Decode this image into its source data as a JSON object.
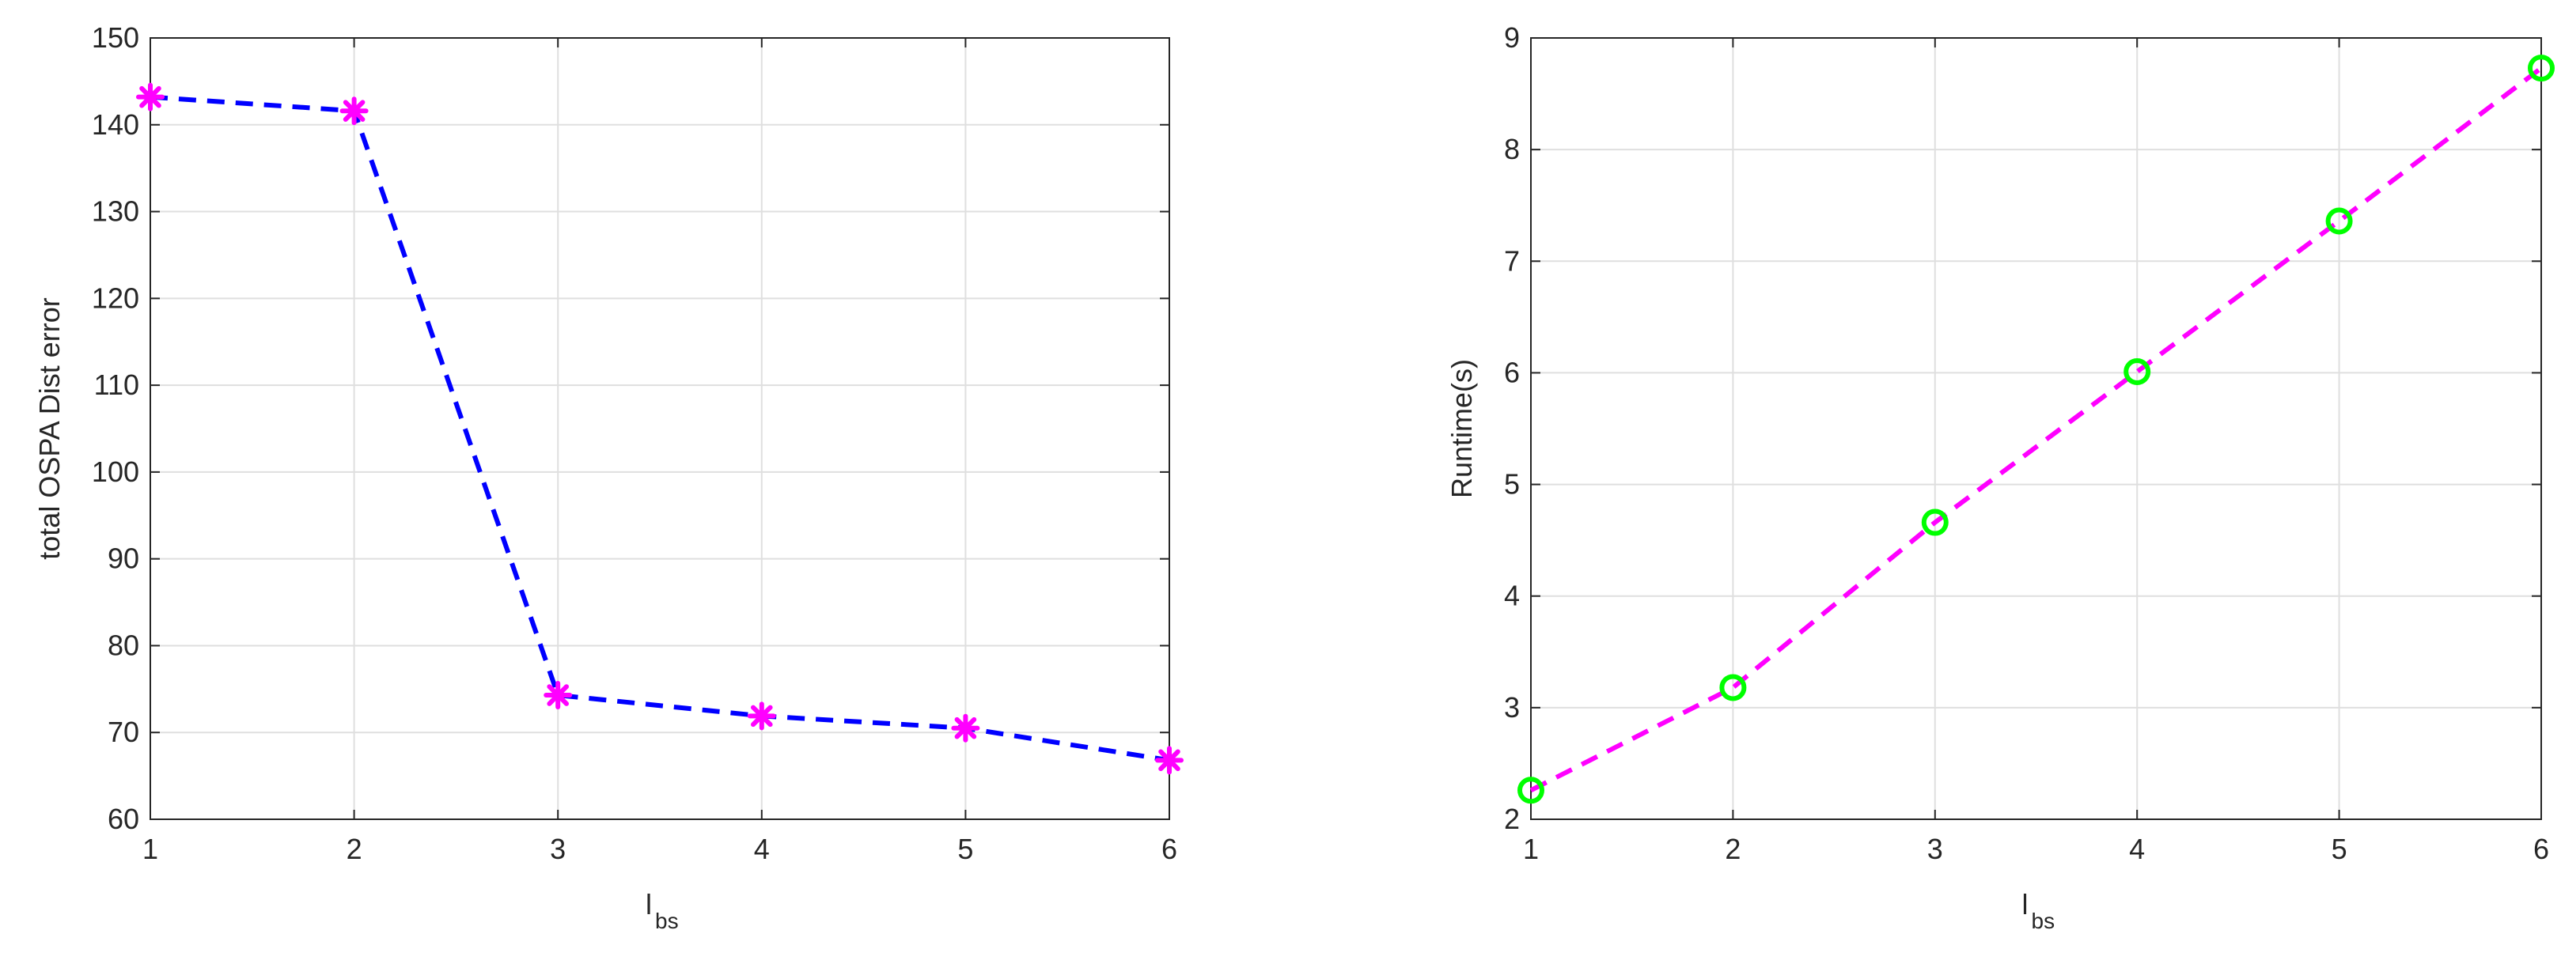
{
  "chart_data": [
    {
      "type": "line",
      "title": "",
      "xlabel": "l",
      "xlabel_subscript": "bs",
      "ylabel": "total OSPA Dist error",
      "xlim": [
        1,
        6
      ],
      "ylim": [
        60,
        150
      ],
      "xticks": [
        1,
        2,
        3,
        4,
        5,
        6
      ],
      "yticks": [
        60,
        70,
        80,
        90,
        100,
        110,
        120,
        130,
        140,
        150
      ],
      "grid": true,
      "line_color": "#0000ff",
      "line_style": "dashed",
      "marker": "asterisk",
      "marker_color": "#ff00ff",
      "series": [
        {
          "x": [
            1,
            2,
            3,
            4,
            5,
            6
          ],
          "values": [
            143.2,
            141.6,
            74.3,
            71.9,
            70.5,
            66.8
          ]
        }
      ]
    },
    {
      "type": "line",
      "title": "",
      "xlabel": "l",
      "xlabel_subscript": "bs",
      "ylabel": "Runtime(s)",
      "xlim": [
        1,
        6
      ],
      "ylim": [
        2,
        9
      ],
      "xticks": [
        1,
        2,
        3,
        4,
        5,
        6
      ],
      "yticks": [
        2,
        3,
        4,
        5,
        6,
        7,
        8,
        9
      ],
      "grid": true,
      "line_color": "#ff00ff",
      "line_style": "dashed",
      "marker": "circle",
      "marker_color": "#00ff00",
      "series": [
        {
          "x": [
            1,
            2,
            3,
            4,
            5,
            6
          ],
          "values": [
            2.26,
            3.18,
            4.66,
            6.01,
            7.36,
            8.73
          ]
        }
      ]
    }
  ]
}
